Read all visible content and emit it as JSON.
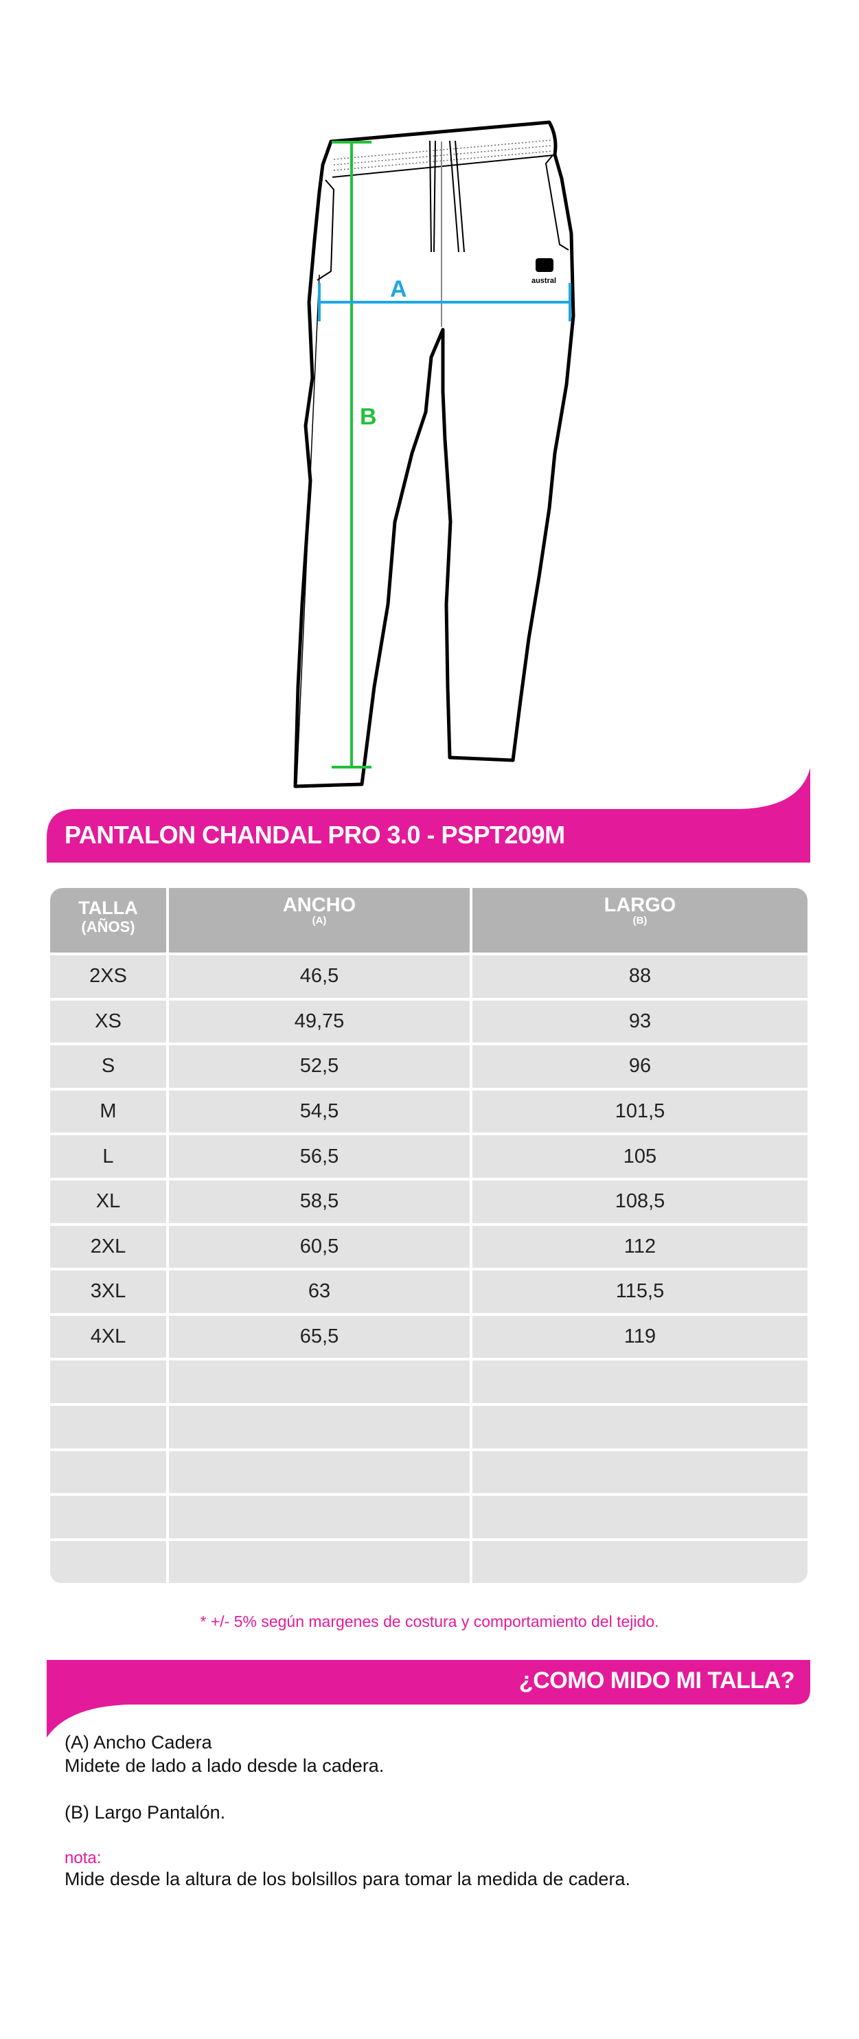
{
  "colors": {
    "accent": "#e31b9a",
    "header_gray": "#b3b3b3",
    "row_gray": "#e3e3e3",
    "measure_a": "#1ea7e1",
    "measure_b": "#22c03a"
  },
  "illustration": {
    "measure_a_label": "A",
    "measure_b_label": "B",
    "brand_logo": "austral"
  },
  "title": "PANTALON CHANDAL PRO 3.0 - PSPT209M",
  "table": {
    "headers": [
      {
        "label": "TALLA",
        "sub": "(AÑOS)"
      },
      {
        "label": "ANCHO",
        "sub": "(A)"
      },
      {
        "label": "LARGO",
        "sub": "(B)"
      }
    ],
    "rows": [
      [
        "2XS",
        "46,5",
        "88"
      ],
      [
        "XS",
        "49,75",
        "93"
      ],
      [
        "S",
        "52,5",
        "96"
      ],
      [
        "M",
        "54,5",
        "101,5"
      ],
      [
        "L",
        "56,5",
        "105"
      ],
      [
        "XL",
        "58,5",
        "108,5"
      ],
      [
        "2XL",
        "60,5",
        "112"
      ],
      [
        "3XL",
        "63",
        "115,5"
      ],
      [
        "4XL",
        "65,5",
        "119"
      ],
      [
        "",
        "",
        ""
      ],
      [
        "",
        "",
        ""
      ],
      [
        "",
        "",
        ""
      ],
      [
        "",
        "",
        ""
      ],
      [
        "",
        "",
        ""
      ]
    ]
  },
  "footnote": "* +/- 5% según margenes de costura y comportamiento del tejido.",
  "how_to": {
    "title": "¿COMO MIDO MI TALLA?",
    "a_title": "(A) Ancho Cadera",
    "a_desc": "Midete  de lado a lado desde la cadera.",
    "b_title": "(B) Largo Pantalón.",
    "note_label": "nota:",
    "note_text": "Mide desde la altura de los bolsillos para tomar la medida de cadera."
  }
}
